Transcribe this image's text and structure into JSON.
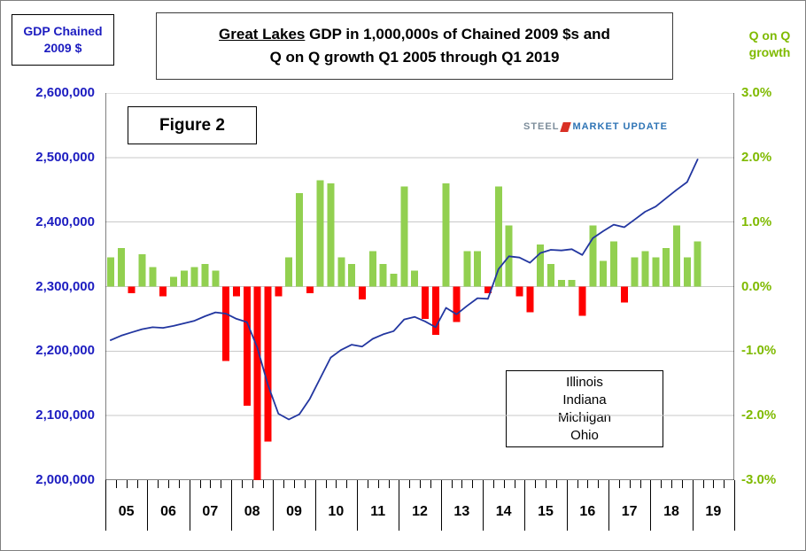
{
  "header": {
    "left_box": {
      "line1": "GDP Chained",
      "line2": "2009 $",
      "text_color": "#1c1cc0"
    },
    "title": {
      "line1_bold": "Great Lakes",
      "line1_rest": " GDP in 1,000,000s of Chained 2009 $s and",
      "line2": "Q on Q growth Q1 2005 through Q1 2019"
    },
    "right_label": {
      "line1": "Q on Q",
      "line2": "growth",
      "text_color": "#7fba00"
    }
  },
  "figure_label": "Figure 2",
  "logo": {
    "steel": "STEEL",
    "market": "MARKET",
    "update": "UPDATE"
  },
  "states_box": {
    "lines": [
      "Illinois",
      "Indiana",
      "Michigan",
      "Ohio"
    ]
  },
  "chart_data": {
    "type": "combo-bar-line",
    "title": "Great Lakes GDP in 1,000,000s of Chained 2009 $s and Q on Q growth Q1 2005 through Q1 2019",
    "legend": "none",
    "grid": "horizontal",
    "left_axis": {
      "label": "GDP Chained 2009 $",
      "min": 2000000,
      "max": 2600000,
      "tick_labels": [
        "2,600,000",
        "2,500,000",
        "2,400,000",
        "2,300,000",
        "2,200,000",
        "2,100,000",
        "2,000,000"
      ],
      "color": "#1c1cc0"
    },
    "right_axis": {
      "label": "Q on Q growth",
      "min": -3.0,
      "max": 3.0,
      "tick_labels": [
        "3.0%",
        "2.0%",
        "1.0%",
        "0.0%",
        "-1.0%",
        "-2.0%",
        "-3.0%"
      ],
      "color": "#7fba00"
    },
    "x_axis": {
      "years": [
        "05",
        "06",
        "07",
        "08",
        "09",
        "10",
        "11",
        "12",
        "13",
        "14",
        "15",
        "16",
        "17",
        "18",
        "19"
      ],
      "quarters_per_year": 4,
      "plotted_quarters": 57
    },
    "quarter_labels": [
      "05Q1",
      "05Q2",
      "05Q3",
      "05Q4",
      "06Q1",
      "06Q2",
      "06Q3",
      "06Q4",
      "07Q1",
      "07Q2",
      "07Q3",
      "07Q4",
      "08Q1",
      "08Q2",
      "08Q3",
      "08Q4",
      "09Q1",
      "09Q2",
      "09Q3",
      "09Q4",
      "10Q1",
      "10Q2",
      "10Q3",
      "10Q4",
      "11Q1",
      "11Q2",
      "11Q3",
      "11Q4",
      "12Q1",
      "12Q2",
      "12Q3",
      "12Q4",
      "13Q1",
      "13Q2",
      "13Q3",
      "13Q4",
      "14Q1",
      "14Q2",
      "14Q3",
      "14Q4",
      "15Q1",
      "15Q2",
      "15Q3",
      "15Q4",
      "16Q1",
      "16Q2",
      "16Q3",
      "16Q4",
      "17Q1",
      "17Q2",
      "17Q3",
      "17Q4",
      "18Q1",
      "18Q2",
      "18Q3",
      "18Q4",
      "19Q1"
    ],
    "series": [
      {
        "name": "GDP Chained 2009 $",
        "type": "line",
        "color": "#2236a0",
        "values": [
          2217000,
          2224000,
          2229000,
          2234000,
          2237000,
          2236000,
          2239000,
          2243000,
          2247000,
          2254000,
          2260000,
          2258000,
          2250000,
          2245000,
          2205000,
          2148000,
          2103000,
          2094000,
          2102000,
          2126000,
          2158000,
          2190000,
          2202000,
          2210000,
          2207000,
          2219000,
          2226000,
          2231000,
          2249000,
          2253000,
          2246000,
          2237000,
          2267000,
          2257000,
          2270000,
          2282000,
          2281000,
          2327000,
          2347000,
          2345000,
          2337000,
          2352000,
          2357000,
          2356000,
          2358000,
          2349000,
          2375000,
          2386000,
          2396000,
          2392000,
          2404000,
          2416000,
          2424000,
          2437000,
          2450000,
          2462000,
          2497000
        ]
      },
      {
        "name": "Q on Q growth",
        "type": "bar",
        "positive_color": "#92d050",
        "negative_color": "#ff0000",
        "values_pct": [
          0.45,
          0.6,
          -0.1,
          0.5,
          0.3,
          -0.15,
          0.15,
          0.25,
          0.3,
          0.35,
          0.25,
          -1.15,
          -0.15,
          -1.85,
          -3.0,
          -2.4,
          -0.15,
          0.45,
          1.45,
          -0.1,
          1.65,
          1.6,
          0.45,
          0.35,
          -0.2,
          0.55,
          0.35,
          0.2,
          1.55,
          0.25,
          -0.5,
          -0.75,
          1.6,
          -0.55,
          0.55,
          0.55,
          -0.1,
          1.55,
          0.95,
          -0.15,
          -0.4,
          0.65,
          0.35,
          0.1,
          0.1,
          -0.45,
          0.95,
          0.4,
          0.7,
          -0.25,
          0.45,
          0.55,
          0.45,
          0.6,
          0.95,
          0.45,
          0.7
        ]
      }
    ]
  }
}
